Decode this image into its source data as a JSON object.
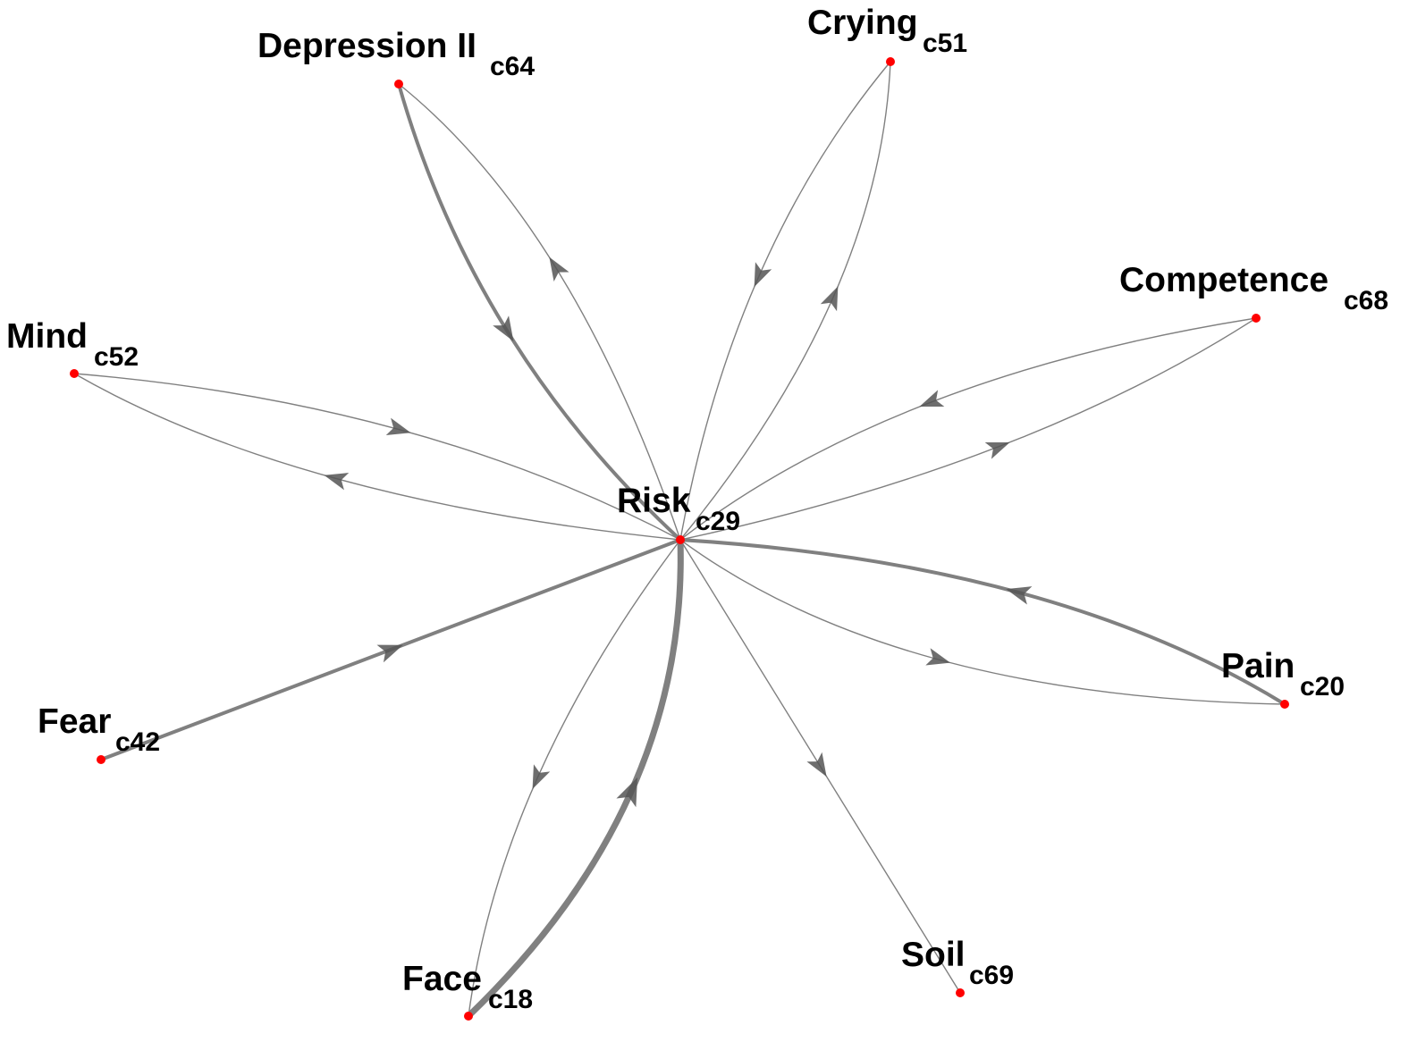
{
  "graph": {
    "colors": {
      "edge": "#808080",
      "arrow": "#555555",
      "node": "#ff0000",
      "label": "#000000"
    },
    "nodes": [
      {
        "id": "c29",
        "name": "Risk",
        "code": "c29"
      },
      {
        "id": "c64",
        "name": "Depression II",
        "code": "c64"
      },
      {
        "id": "c51",
        "name": "Crying",
        "code": "c51"
      },
      {
        "id": "c68",
        "name": "Competence",
        "code": "c68"
      },
      {
        "id": "c52",
        "name": "Mind",
        "code": "c52"
      },
      {
        "id": "c42",
        "name": "Fear",
        "code": "c42"
      },
      {
        "id": "c18",
        "name": "Face",
        "code": "c18"
      },
      {
        "id": "c69",
        "name": "Soil",
        "code": "c69"
      },
      {
        "id": "c20",
        "name": "Pain",
        "code": "c20"
      }
    ],
    "edges": [
      {
        "from": "c64",
        "to": "c29",
        "weight": 3
      },
      {
        "from": "c29",
        "to": "c64",
        "weight": 1
      },
      {
        "from": "c51",
        "to": "c29",
        "weight": 1
      },
      {
        "from": "c29",
        "to": "c51",
        "weight": 1
      },
      {
        "from": "c68",
        "to": "c29",
        "weight": 1
      },
      {
        "from": "c29",
        "to": "c68",
        "weight": 1
      },
      {
        "from": "c52",
        "to": "c29",
        "weight": 1
      },
      {
        "from": "c29",
        "to": "c52",
        "weight": 1
      },
      {
        "from": "c42",
        "to": "c29",
        "weight": 3
      },
      {
        "from": "c29",
        "to": "c18",
        "weight": 1
      },
      {
        "from": "c18",
        "to": "c29",
        "weight": 6
      },
      {
        "from": "c29",
        "to": "c69",
        "weight": 1
      },
      {
        "from": "c20",
        "to": "c29",
        "weight": 3
      },
      {
        "from": "c29",
        "to": "c20",
        "weight": 1
      }
    ]
  }
}
